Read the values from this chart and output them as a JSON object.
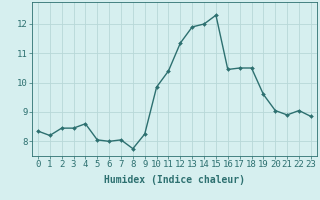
{
  "x": [
    0,
    1,
    2,
    3,
    4,
    5,
    6,
    7,
    8,
    9,
    10,
    11,
    12,
    13,
    14,
    15,
    16,
    17,
    18,
    19,
    20,
    21,
    22,
    23
  ],
  "y": [
    8.35,
    8.2,
    8.45,
    8.45,
    8.6,
    8.05,
    8.0,
    8.05,
    7.75,
    8.25,
    9.85,
    10.4,
    11.35,
    11.9,
    12.0,
    12.3,
    10.45,
    10.5,
    10.5,
    9.6,
    9.05,
    8.9,
    9.05,
    8.85
  ],
  "line_color": "#2d7070",
  "marker": "D",
  "marker_size": 2.0,
  "line_width": 1.0,
  "background_color": "#d6efef",
  "grid_color": "#b8d8d8",
  "xlabel": "Humidex (Indice chaleur)",
  "ylim": [
    7.5,
    12.75
  ],
  "xlim": [
    -0.5,
    23.5
  ],
  "yticks": [
    8,
    9,
    10,
    11,
    12
  ],
  "xlabel_fontsize": 7,
  "tick_fontsize": 6.5,
  "axis_color": "#2d7070"
}
